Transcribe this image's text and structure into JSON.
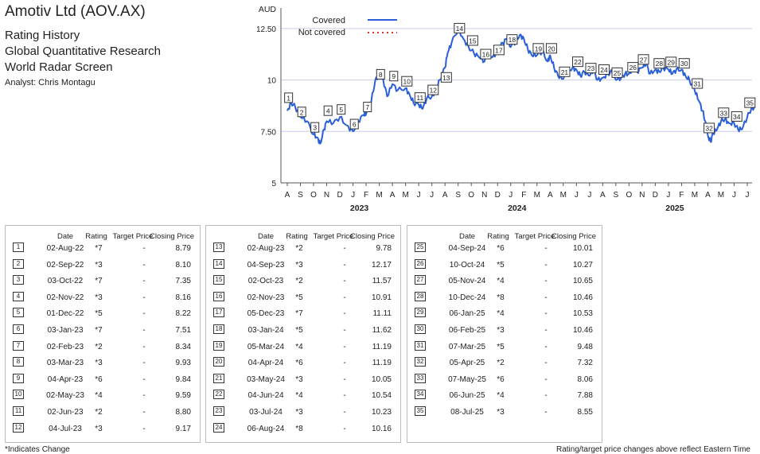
{
  "header": {
    "title": "Amotiv Ltd (AOV.AX)",
    "line1": "Rating History",
    "line2": "Global Quantitative Research",
    "line3": "World Radar Screen",
    "analyst": "Analyst: Chris Montagu"
  },
  "chart_data": {
    "type": "line",
    "ylabel": "AUD",
    "ylim": [
      5,
      13.5
    ],
    "yticks": [
      5,
      7.5,
      10,
      12.5
    ],
    "ytick_labels": [
      "5",
      "7.50",
      "10",
      "12.50"
    ],
    "month_labels": [
      "A",
      "S",
      "O",
      "N",
      "D",
      "J",
      "F",
      "M",
      "A",
      "M",
      "J",
      "J",
      "A",
      "S",
      "O",
      "N",
      "D",
      "J",
      "F",
      "M",
      "A",
      "M",
      "J",
      "J",
      "A",
      "S",
      "O",
      "N",
      "D",
      "J",
      "F",
      "M",
      "A",
      "M",
      "J",
      "J"
    ],
    "year_labels": [
      {
        "label": "2023",
        "month_index": 5
      },
      {
        "label": "2024",
        "month_index": 17
      },
      {
        "label": "2025",
        "month_index": 29
      }
    ],
    "legend": {
      "position": "top",
      "covered": "Covered",
      "not_covered": "Not covered"
    },
    "colors": {
      "line": "#2b5fd9",
      "not_covered": "#e0342f",
      "grid": "#c9cde8"
    },
    "series": [
      {
        "name": "Covered",
        "points": [
          [
            0,
            8.5
          ],
          [
            0.3,
            8.9
          ],
          [
            0.6,
            8.7
          ],
          [
            1.0,
            8.2
          ],
          [
            1.5,
            8.0
          ],
          [
            2.0,
            7.35
          ],
          [
            2.3,
            7.2
          ],
          [
            2.5,
            6.9
          ],
          [
            2.8,
            7.6
          ],
          [
            3.0,
            8.0
          ],
          [
            3.5,
            7.9
          ],
          [
            4.0,
            8.2
          ],
          [
            4.5,
            7.8
          ],
          [
            5.0,
            7.5
          ],
          [
            5.4,
            8.0
          ],
          [
            5.8,
            8.3
          ],
          [
            6.0,
            8.35
          ],
          [
            6.4,
            9.0
          ],
          [
            6.7,
            10.0
          ],
          [
            7.0,
            10.3
          ],
          [
            7.3,
            10.0
          ],
          [
            7.6,
            9.2
          ],
          [
            8.0,
            9.8
          ],
          [
            8.4,
            9.5
          ],
          [
            9.0,
            9.6
          ],
          [
            9.3,
            9.3
          ],
          [
            9.6,
            8.9
          ],
          [
            10.0,
            8.8
          ],
          [
            10.3,
            8.6
          ],
          [
            10.6,
            9.1
          ],
          [
            11.0,
            9.2
          ],
          [
            11.3,
            9.5
          ],
          [
            11.6,
            10.0
          ],
          [
            12.0,
            10.6
          ],
          [
            12.2,
            11.3
          ],
          [
            12.5,
            11.8
          ],
          [
            13.0,
            12.5
          ],
          [
            13.4,
            12.0
          ],
          [
            13.8,
            11.6
          ],
          [
            14.2,
            11.3
          ],
          [
            14.6,
            11.1
          ],
          [
            15.0,
            10.9
          ],
          [
            15.3,
            11.3
          ],
          [
            15.6,
            11.1
          ],
          [
            16.0,
            11.4
          ],
          [
            16.4,
            11.8
          ],
          [
            16.7,
            12.0
          ],
          [
            17.0,
            11.6
          ],
          [
            17.4,
            11.9
          ],
          [
            17.7,
            12.2
          ],
          [
            18.0,
            12.0
          ],
          [
            18.3,
            11.5
          ],
          [
            18.6,
            11.2
          ],
          [
            19.0,
            11.2
          ],
          [
            19.4,
            11.4
          ],
          [
            19.8,
            10.9
          ],
          [
            20.0,
            11.2
          ],
          [
            20.3,
            10.6
          ],
          [
            20.6,
            10.2
          ],
          [
            21.0,
            10.05
          ],
          [
            21.3,
            10.4
          ],
          [
            21.7,
            10.6
          ],
          [
            22.0,
            10.5
          ],
          [
            22.3,
            10.2
          ],
          [
            22.6,
            10.4
          ],
          [
            23.0,
            10.2
          ],
          [
            23.3,
            10.5
          ],
          [
            23.6,
            10.0
          ],
          [
            24.0,
            10.1
          ],
          [
            24.4,
            10.3
          ],
          [
            24.7,
            10.4
          ],
          [
            25.0,
            10.0
          ],
          [
            25.4,
            10.1
          ],
          [
            25.7,
            10.3
          ],
          [
            26.0,
            10.3
          ],
          [
            26.3,
            10.6
          ],
          [
            26.6,
            10.4
          ],
          [
            27.0,
            10.6
          ],
          [
            27.3,
            10.8
          ],
          [
            27.6,
            10.3
          ],
          [
            28.0,
            10.5
          ],
          [
            28.3,
            10.4
          ],
          [
            28.6,
            10.6
          ],
          [
            29.0,
            10.5
          ],
          [
            29.3,
            10.3
          ],
          [
            29.6,
            10.5
          ],
          [
            30.0,
            10.5
          ],
          [
            30.3,
            10.2
          ],
          [
            30.6,
            10.0
          ],
          [
            31.0,
            9.5
          ],
          [
            31.3,
            9.0
          ],
          [
            31.6,
            8.5
          ],
          [
            31.8,
            8.0
          ],
          [
            32.0,
            7.3
          ],
          [
            32.2,
            7.0
          ],
          [
            32.4,
            7.4
          ],
          [
            32.7,
            7.6
          ],
          [
            33.0,
            8.0
          ],
          [
            33.3,
            8.1
          ],
          [
            33.6,
            7.9
          ],
          [
            34.0,
            7.9
          ],
          [
            34.3,
            7.6
          ],
          [
            34.6,
            7.6
          ],
          [
            35.0,
            8.2
          ],
          [
            35.3,
            8.6
          ],
          [
            35.6,
            8.7
          ]
        ]
      }
    ],
    "markers": [
      {
        "n": "1",
        "x": 0.1,
        "y": 8.79
      },
      {
        "n": "2",
        "x": 1.1,
        "y": 8.1
      },
      {
        "n": "3",
        "x": 2.1,
        "y": 7.35
      },
      {
        "n": "4",
        "x": 3.1,
        "y": 8.16
      },
      {
        "n": "5",
        "x": 4.1,
        "y": 8.22
      },
      {
        "n": "6",
        "x": 5.1,
        "y": 7.51
      },
      {
        "n": "7",
        "x": 6.1,
        "y": 8.34
      },
      {
        "n": "8",
        "x": 7.1,
        "y": 9.93
      },
      {
        "n": "9",
        "x": 8.1,
        "y": 9.84
      },
      {
        "n": "10",
        "x": 9.1,
        "y": 9.59
      },
      {
        "n": "11",
        "x": 10.1,
        "y": 8.8
      },
      {
        "n": "12",
        "x": 11.1,
        "y": 9.17
      },
      {
        "n": "13",
        "x": 12.1,
        "y": 9.78
      },
      {
        "n": "14",
        "x": 13.1,
        "y": 12.17
      },
      {
        "n": "15",
        "x": 14.1,
        "y": 11.57
      },
      {
        "n": "16",
        "x": 15.1,
        "y": 10.91
      },
      {
        "n": "17",
        "x": 16.1,
        "y": 11.11
      },
      {
        "n": "18",
        "x": 17.1,
        "y": 11.62
      },
      {
        "n": "19",
        "x": 19.1,
        "y": 11.19
      },
      {
        "n": "20",
        "x": 20.1,
        "y": 11.19
      },
      {
        "n": "21",
        "x": 21.1,
        "y": 10.05
      },
      {
        "n": "22",
        "x": 22.1,
        "y": 10.54
      },
      {
        "n": "23",
        "x": 23.1,
        "y": 10.23
      },
      {
        "n": "24",
        "x": 24.1,
        "y": 10.16
      },
      {
        "n": "25",
        "x": 25.1,
        "y": 10.01
      },
      {
        "n": "26",
        "x": 26.3,
        "y": 10.27
      },
      {
        "n": "27",
        "x": 27.1,
        "y": 10.65
      },
      {
        "n": "28",
        "x": 28.3,
        "y": 10.46
      },
      {
        "n": "29",
        "x": 29.2,
        "y": 10.53
      },
      {
        "n": "30",
        "x": 30.2,
        "y": 10.46
      },
      {
        "n": "31",
        "x": 31.2,
        "y": 9.48
      },
      {
        "n": "32",
        "x": 32.1,
        "y": 7.32
      },
      {
        "n": "33",
        "x": 33.2,
        "y": 8.06
      },
      {
        "n": "34",
        "x": 34.2,
        "y": 7.88
      },
      {
        "n": "35",
        "x": 35.2,
        "y": 8.55
      }
    ]
  },
  "table": {
    "headers": {
      "date": "Date",
      "rating": "Rating",
      "target": "Target Price",
      "closing": "Closing Price"
    },
    "panels": [
      [
        {
          "n": "1",
          "date": "02-Aug-22",
          "rating": "*7",
          "target": "-",
          "close": "8.79"
        },
        {
          "n": "2",
          "date": "02-Sep-22",
          "rating": "*3",
          "target": "-",
          "close": "8.10"
        },
        {
          "n": "3",
          "date": "03-Oct-22",
          "rating": "*7",
          "target": "-",
          "close": "7.35"
        },
        {
          "n": "4",
          "date": "02-Nov-22",
          "rating": "*3",
          "target": "-",
          "close": "8.16"
        },
        {
          "n": "5",
          "date": "01-Dec-22",
          "rating": "*5",
          "target": "-",
          "close": "8.22"
        },
        {
          "n": "6",
          "date": "03-Jan-23",
          "rating": "*7",
          "target": "-",
          "close": "7.51"
        },
        {
          "n": "7",
          "date": "02-Feb-23",
          "rating": "*2",
          "target": "-",
          "close": "8.34"
        },
        {
          "n": "8",
          "date": "03-Mar-23",
          "rating": "*3",
          "target": "-",
          "close": "9.93"
        },
        {
          "n": "9",
          "date": "04-Apr-23",
          "rating": "*6",
          "target": "-",
          "close": "9.84"
        },
        {
          "n": "10",
          "date": "02-May-23",
          "rating": "*4",
          "target": "-",
          "close": "9.59"
        },
        {
          "n": "11",
          "date": "02-Jun-23",
          "rating": "*2",
          "target": "-",
          "close": "8.80"
        },
        {
          "n": "12",
          "date": "04-Jul-23",
          "rating": "*3",
          "target": "-",
          "close": "9.17"
        }
      ],
      [
        {
          "n": "13",
          "date": "02-Aug-23",
          "rating": "*2",
          "target": "-",
          "close": "9.78"
        },
        {
          "n": "14",
          "date": "04-Sep-23",
          "rating": "*3",
          "target": "-",
          "close": "12.17"
        },
        {
          "n": "15",
          "date": "02-Oct-23",
          "rating": "*2",
          "target": "-",
          "close": "11.57"
        },
        {
          "n": "16",
          "date": "02-Nov-23",
          "rating": "*5",
          "target": "-",
          "close": "10.91"
        },
        {
          "n": "17",
          "date": "05-Dec-23",
          "rating": "*7",
          "target": "-",
          "close": "11.11"
        },
        {
          "n": "18",
          "date": "03-Jan-24",
          "rating": "*5",
          "target": "-",
          "close": "11.62"
        },
        {
          "n": "19",
          "date": "05-Mar-24",
          "rating": "*4",
          "target": "-",
          "close": "11.19"
        },
        {
          "n": "20",
          "date": "04-Apr-24",
          "rating": "*6",
          "target": "-",
          "close": "11.19"
        },
        {
          "n": "21",
          "date": "03-May-24",
          "rating": "*3",
          "target": "-",
          "close": "10.05"
        },
        {
          "n": "22",
          "date": "04-Jun-24",
          "rating": "*4",
          "target": "-",
          "close": "10.54"
        },
        {
          "n": "23",
          "date": "03-Jul-24",
          "rating": "*3",
          "target": "-",
          "close": "10.23"
        },
        {
          "n": "24",
          "date": "06-Aug-24",
          "rating": "*8",
          "target": "-",
          "close": "10.16"
        }
      ],
      [
        {
          "n": "25",
          "date": "04-Sep-24",
          "rating": "*6",
          "target": "-",
          "close": "10.01"
        },
        {
          "n": "26",
          "date": "10-Oct-24",
          "rating": "*5",
          "target": "-",
          "close": "10.27"
        },
        {
          "n": "27",
          "date": "05-Nov-24",
          "rating": "*4",
          "target": "-",
          "close": "10.65"
        },
        {
          "n": "28",
          "date": "10-Dec-24",
          "rating": "*8",
          "target": "-",
          "close": "10.46"
        },
        {
          "n": "29",
          "date": "06-Jan-25",
          "rating": "*4",
          "target": "-",
          "close": "10.53"
        },
        {
          "n": "30",
          "date": "06-Feb-25",
          "rating": "*3",
          "target": "-",
          "close": "10.46"
        },
        {
          "n": "31",
          "date": "07-Mar-25",
          "rating": "*5",
          "target": "-",
          "close": "9.48"
        },
        {
          "n": "32",
          "date": "05-Apr-25",
          "rating": "*2",
          "target": "-",
          "close": "7.32"
        },
        {
          "n": "33",
          "date": "07-May-25",
          "rating": "*6",
          "target": "-",
          "close": "8.06"
        },
        {
          "n": "34",
          "date": "06-Jun-25",
          "rating": "*4",
          "target": "-",
          "close": "7.88"
        },
        {
          "n": "35",
          "date": "08-Jul-25",
          "rating": "*3",
          "target": "-",
          "close": "8.55"
        }
      ]
    ]
  },
  "footer": {
    "left": "*Indicates Change",
    "right": "Rating/target price changes above reflect Eastern Time"
  }
}
